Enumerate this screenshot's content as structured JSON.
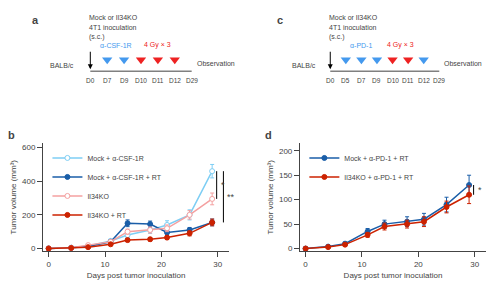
{
  "chart_data": [
    {
      "type": "timeline",
      "title": "a",
      "categories": [
        "D0",
        "D7",
        "D9",
        "D10",
        "D11",
        "D12",
        "D29"
      ],
      "series": [
        {
          "name": "α-CSF-1R",
          "color": "#4499EE",
          "categories": [
            "D7",
            "D9"
          ]
        },
        {
          "name": "4 Gy × 3",
          "color": "#EE2222",
          "categories": [
            "D10",
            "D11",
            "D12"
          ]
        }
      ],
      "annotations": [
        "Mock or Il34KO",
        "4T1 inoculation",
        "(s.c.)",
        "BALB/c",
        "Observation"
      ]
    },
    {
      "type": "timeline",
      "title": "c",
      "categories": [
        "D0",
        "D5",
        "D7",
        "D9",
        "D10",
        "D11",
        "D12",
        "D29"
      ],
      "series": [
        {
          "name": "α-PD-1",
          "color": "#4499EE",
          "categories": [
            "D5",
            "D7",
            "D9"
          ]
        },
        {
          "name": "4 Gy × 3",
          "color": "#EE2222",
          "categories": [
            "D10",
            "D11"
          ]
        },
        {
          "color": "#4499EE",
          "categories": [
            "D12"
          ]
        }
      ],
      "annotations": [
        "Mock or Il34KO",
        "4T1 inoculation",
        "(s.c.)",
        "BALB/c",
        "Observation"
      ]
    },
    {
      "type": "line",
      "title": "b",
      "x": [
        0,
        4,
        7,
        11,
        14,
        18,
        21,
        25,
        29
      ],
      "xlabel": "Days post tumor inoculation",
      "ylabel": "Tumor volume (mm³)",
      "xlim": [
        -1,
        32
      ],
      "ylim": [
        -15,
        625
      ],
      "xticks": [
        0,
        10,
        20,
        30
      ],
      "yticks": [
        0,
        200,
        400,
        600
      ],
      "grid": false,
      "legend": "upper left",
      "series": [
        {
          "name": "Mock + α-CSF-1R",
          "color": "#7ECEF4",
          "marker": "open_circle",
          "values": [
            0,
            5,
            15,
            45,
            80,
            110,
            140,
            200,
            460
          ],
          "errors": [
            0,
            2,
            5,
            10,
            15,
            20,
            25,
            30,
            40
          ]
        },
        {
          "name": "Mock + α-CSF-1R + RT",
          "color": "#1A5EA8",
          "marker": "circle",
          "values": [
            0,
            4,
            12,
            40,
            150,
            145,
            95,
            110,
            155
          ],
          "errors": [
            0,
            2,
            4,
            8,
            20,
            18,
            15,
            15,
            20
          ]
        },
        {
          "name": "Il34KO",
          "color": "#F4A0A0",
          "marker": "open_circle",
          "values": [
            0,
            4,
            20,
            40,
            100,
            110,
            120,
            200,
            295
          ],
          "errors": [
            0,
            2,
            5,
            8,
            15,
            18,
            20,
            25,
            35
          ]
        },
        {
          "name": "Il34KO + RT",
          "color": "#CC2200",
          "marker": "circle",
          "values": [
            0,
            3,
            8,
            25,
            50,
            55,
            65,
            90,
            155
          ],
          "errors": [
            0,
            1,
            3,
            6,
            10,
            10,
            12,
            15,
            20
          ]
        }
      ],
      "annotations": [
        {
          "text": "*",
          "x": 29.8,
          "y": [
            295,
            460
          ]
        },
        {
          "text": "**",
          "x": 31.0,
          "y": [
            155,
            460
          ]
        }
      ]
    },
    {
      "type": "line",
      "title": "d",
      "x": [
        0,
        4,
        7,
        11,
        14,
        18,
        21,
        25,
        29
      ],
      "xlabel": "Days post tumor inoculation",
      "ylabel": "Tumor volume (mm³)",
      "xlim": [
        -1,
        32
      ],
      "ylim": [
        -5,
        215
      ],
      "xticks": [
        0,
        10,
        20,
        30
      ],
      "yticks": [
        0,
        50,
        100,
        150,
        200
      ],
      "grid": false,
      "legend": "upper left",
      "series": [
        {
          "name": "Mock + α-PD-1 + RT",
          "color": "#1A5EA8",
          "marker": "circle",
          "values": [
            0,
            4,
            10,
            35,
            50,
            55,
            60,
            90,
            130
          ],
          "errors": [
            0,
            2,
            3,
            6,
            8,
            10,
            12,
            15,
            20
          ]
        },
        {
          "name": "Il34KO + α-PD-1 + RT",
          "color": "#CC2200",
          "marker": "circle",
          "values": [
            0,
            3,
            8,
            28,
            45,
            50,
            55,
            85,
            110
          ],
          "errors": [
            0,
            1,
            3,
            5,
            7,
            8,
            10,
            12,
            18
          ]
        }
      ],
      "annotations": [
        {
          "text": "*",
          "x": 29.8,
          "y": [
            110,
            130
          ]
        }
      ]
    }
  ]
}
